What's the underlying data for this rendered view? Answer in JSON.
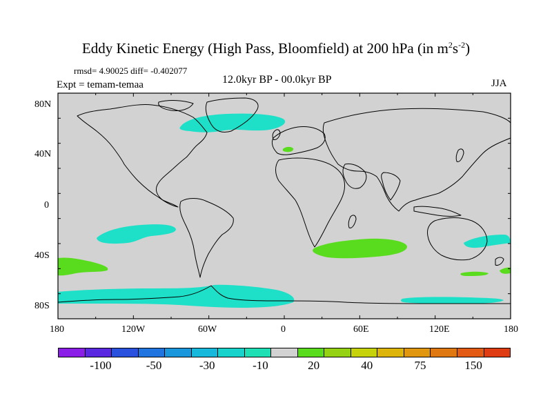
{
  "title": {
    "main": "Eddy Kinetic Energy (High Pass, Bloomfield) at 200 hPa (in m",
    "sup1": "2",
    "mid": "s",
    "sup2": "-2",
    "end": ")"
  },
  "stats": "rmsd= 4.90025 diff= -0.402077",
  "expt": "Expt = temam-temaa",
  "period": "12.0kyr BP - 00.0kyr BP",
  "season": "JJA",
  "lat_labels": [
    "80N",
    "40N",
    "0",
    "40S",
    "80S"
  ],
  "lon_labels": [
    "180",
    "120W",
    "60W",
    "0",
    "60E",
    "120E",
    "180"
  ],
  "colorbar": {
    "colors": [
      "#8a1ee6",
      "#5a28e0",
      "#2a50de",
      "#1f74e0",
      "#1a96dc",
      "#16b8dc",
      "#18d2cc",
      "#1ee0b4",
      "#d2d2d2",
      "#5adc1e",
      "#96d214",
      "#c6d20a",
      "#dcb40a",
      "#e0960e",
      "#e07812",
      "#e25a14",
      "#e03c14"
    ],
    "labels": [
      "-100",
      "-50",
      "-30",
      "-10",
      "20",
      "40",
      "75",
      "150"
    ]
  },
  "map_colors": {
    "background": "#d2d2d2",
    "negative": "#1ee0c8",
    "positive": "#5adc1e"
  }
}
